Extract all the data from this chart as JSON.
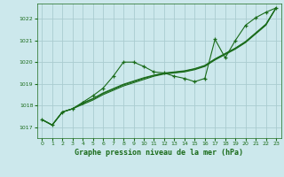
{
  "xlabel": "Graphe pression niveau de la mer (hPa)",
  "bg_color": "#cce8ec",
  "grid_color": "#aaccd0",
  "line_color": "#1a6b1a",
  "xlim": [
    -0.5,
    23.5
  ],
  "ylim": [
    1016.5,
    1022.7
  ],
  "yticks": [
    1017,
    1018,
    1019,
    1020,
    1021,
    1022
  ],
  "xticks": [
    0,
    1,
    2,
    3,
    4,
    5,
    6,
    7,
    8,
    9,
    10,
    11,
    12,
    13,
    14,
    15,
    16,
    17,
    18,
    19,
    20,
    21,
    22,
    23
  ],
  "series_main": [
    1017.35,
    1017.1,
    1017.7,
    1017.85,
    1018.15,
    1018.45,
    1018.8,
    1019.35,
    1020.0,
    1020.0,
    1019.8,
    1019.55,
    1019.5,
    1019.35,
    1019.25,
    1019.1,
    1019.25,
    1021.05,
    1020.2,
    1021.0,
    1021.7,
    1022.05,
    1022.3,
    1022.5
  ],
  "series_a": [
    1017.35,
    1017.1,
    1017.7,
    1017.85,
    1018.05,
    1018.25,
    1018.5,
    1018.7,
    1018.9,
    1019.05,
    1019.2,
    1019.35,
    1019.45,
    1019.5,
    1019.55,
    1019.65,
    1019.8,
    1020.1,
    1020.35,
    1020.6,
    1020.9,
    1021.3,
    1021.7,
    1022.5
  ],
  "series_b": [
    1017.35,
    1017.1,
    1017.7,
    1017.85,
    1018.1,
    1018.3,
    1018.55,
    1018.75,
    1018.95,
    1019.1,
    1019.25,
    1019.38,
    1019.48,
    1019.52,
    1019.58,
    1019.68,
    1019.83,
    1020.13,
    1020.38,
    1020.63,
    1020.93,
    1021.33,
    1021.73,
    1022.5
  ],
  "series_c": [
    1017.35,
    1017.1,
    1017.7,
    1017.85,
    1018.12,
    1018.32,
    1018.58,
    1018.78,
    1018.98,
    1019.13,
    1019.28,
    1019.4,
    1019.5,
    1019.55,
    1019.6,
    1019.7,
    1019.85,
    1020.15,
    1020.4,
    1020.65,
    1020.95,
    1021.35,
    1021.75,
    1022.5
  ]
}
